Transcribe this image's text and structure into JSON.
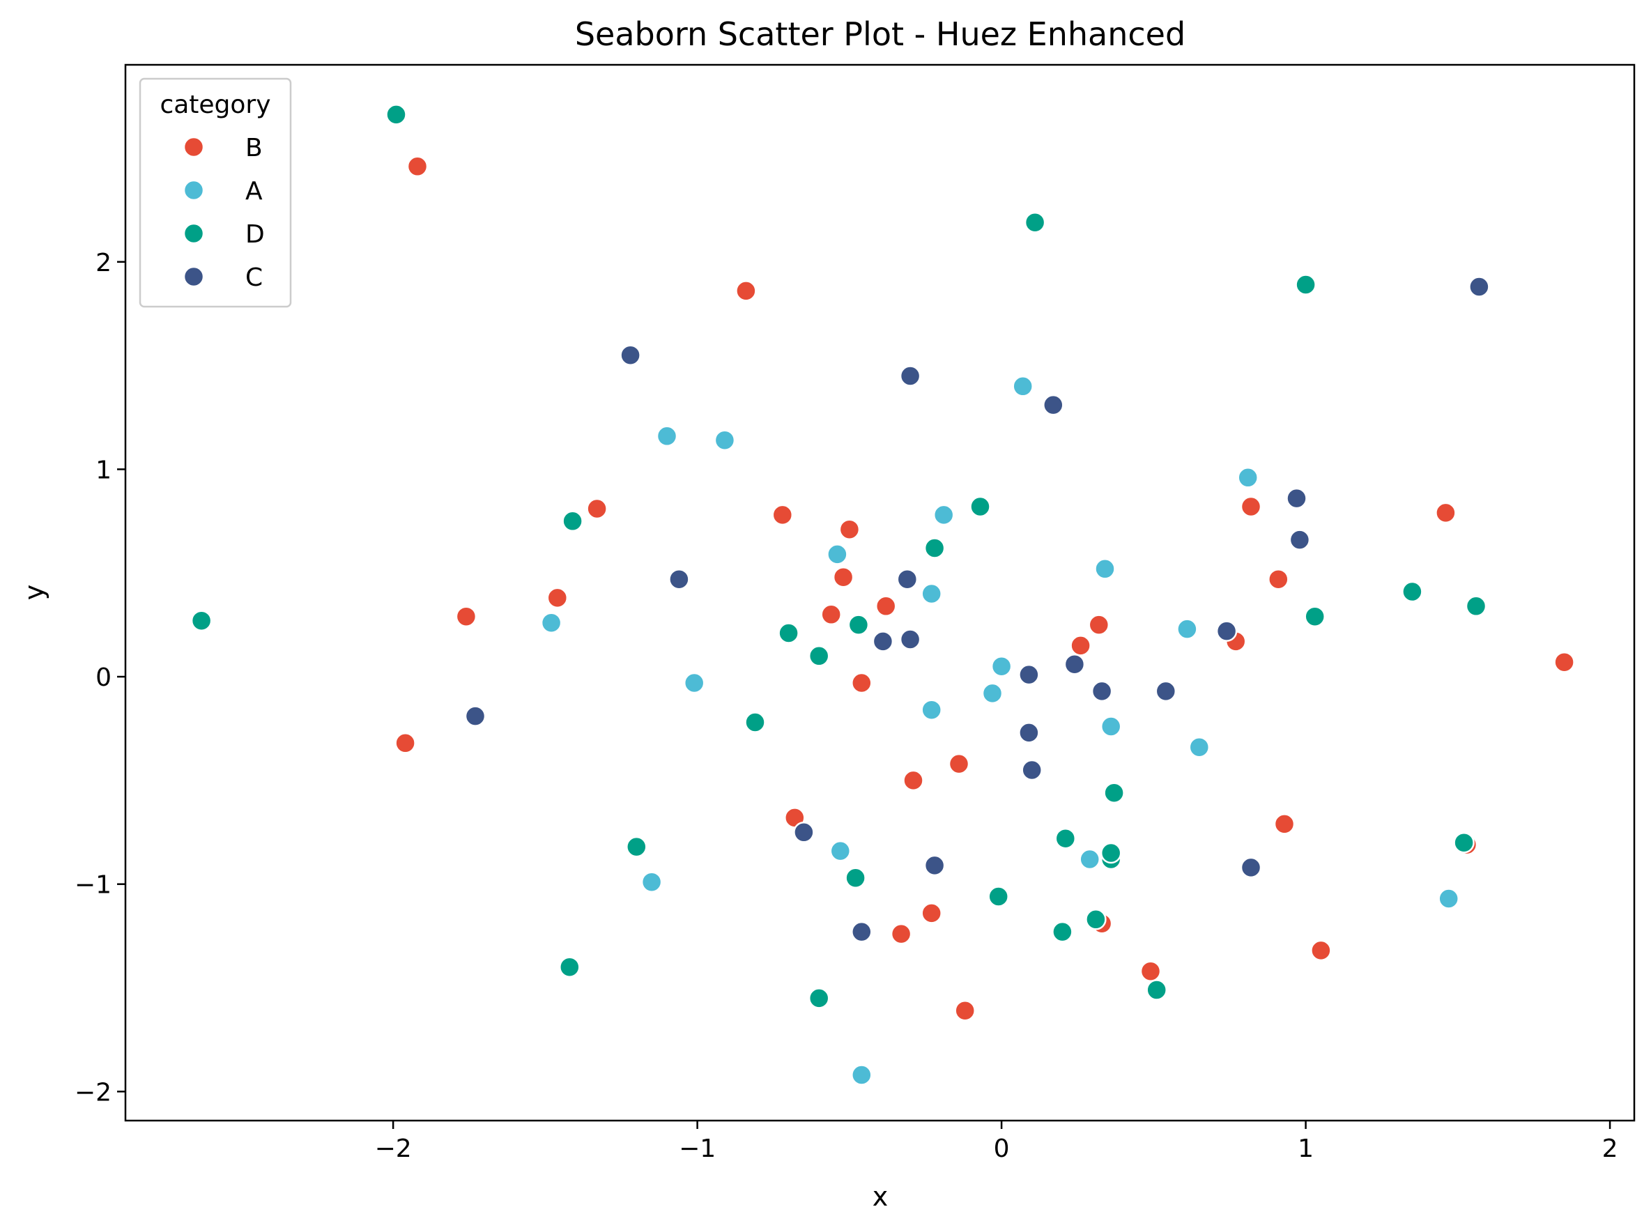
{
  "chart_data": {
    "type": "scatter",
    "title": "Seaborn Scatter Plot - Huez Enhanced",
    "xlabel": "x",
    "ylabel": "y",
    "xlim": [
      -2.88,
      2.08
    ],
    "ylim": [
      -2.14,
      2.95
    ],
    "xticks": [
      -2,
      -1,
      0,
      1,
      2
    ],
    "xtick_labels": [
      "−2",
      "−1",
      "0",
      "1",
      "2"
    ],
    "yticks": [
      -2,
      -1,
      0,
      1,
      2
    ],
    "ytick_labels": [
      "−2",
      "−1",
      "0",
      "1",
      "2"
    ],
    "grid": false,
    "legend": {
      "title": "category",
      "placement": "top-left"
    },
    "series": [
      {
        "name": "B",
        "color": "#E64B35",
        "points": [
          [
            -1.92,
            2.46
          ],
          [
            -0.84,
            1.86
          ],
          [
            -1.33,
            0.81
          ],
          [
            -0.72,
            0.78
          ],
          [
            -0.5,
            0.71
          ],
          [
            -0.52,
            0.48
          ],
          [
            -1.46,
            0.38
          ],
          [
            -1.76,
            0.29
          ],
          [
            -0.56,
            0.3
          ],
          [
            -0.38,
            0.34
          ],
          [
            -0.46,
            -0.03
          ],
          [
            -1.96,
            -0.32
          ],
          [
            -0.14,
            -0.42
          ],
          [
            -0.29,
            -0.5
          ],
          [
            -0.68,
            -0.68
          ],
          [
            -0.23,
            -1.14
          ],
          [
            -0.33,
            -1.24
          ],
          [
            -0.12,
            -1.61
          ],
          [
            0.32,
            0.25
          ],
          [
            0.26,
            0.15
          ],
          [
            0.82,
            0.82
          ],
          [
            0.91,
            0.47
          ],
          [
            0.77,
            0.17
          ],
          [
            0.93,
            -0.71
          ],
          [
            0.33,
            -1.19
          ],
          [
            0.49,
            -1.42
          ],
          [
            1.05,
            -1.32
          ],
          [
            1.46,
            0.79
          ],
          [
            1.53,
            -0.81
          ],
          [
            1.85,
            0.07
          ]
        ]
      },
      {
        "name": "A",
        "color": "#4DBBD5",
        "points": [
          [
            -1.1,
            1.16
          ],
          [
            -0.91,
            1.14
          ],
          [
            -1.48,
            0.26
          ],
          [
            -1.01,
            -0.03
          ],
          [
            -1.15,
            -0.99
          ],
          [
            -0.54,
            0.59
          ],
          [
            -0.19,
            0.78
          ],
          [
            -0.23,
            0.4
          ],
          [
            -0.23,
            -0.16
          ],
          [
            0.0,
            0.05
          ],
          [
            -0.03,
            -0.08
          ],
          [
            -0.53,
            -0.84
          ],
          [
            -0.46,
            -1.92
          ],
          [
            0.07,
            1.4
          ],
          [
            0.34,
            0.52
          ],
          [
            0.36,
            -0.24
          ],
          [
            0.29,
            -0.88
          ],
          [
            0.61,
            0.23
          ],
          [
            0.65,
            -0.34
          ],
          [
            0.81,
            0.96
          ],
          [
            1.47,
            -1.07
          ]
        ]
      },
      {
        "name": "D",
        "color": "#00A087",
        "points": [
          [
            -1.99,
            2.71
          ],
          [
            -2.63,
            0.27
          ],
          [
            -1.41,
            0.75
          ],
          [
            -1.2,
            -0.82
          ],
          [
            -1.42,
            -1.4
          ],
          [
            -0.7,
            0.21
          ],
          [
            -0.6,
            0.1
          ],
          [
            -0.47,
            0.25
          ],
          [
            -0.81,
            -0.22
          ],
          [
            -0.48,
            -0.97
          ],
          [
            -0.6,
            -1.55
          ],
          [
            -0.22,
            0.62
          ],
          [
            -0.07,
            0.82
          ],
          [
            0.11,
            2.19
          ],
          [
            -0.01,
            -1.06
          ],
          [
            0.21,
            -0.78
          ],
          [
            0.2,
            -1.23
          ],
          [
            0.37,
            -0.56
          ],
          [
            0.36,
            -0.88
          ],
          [
            0.36,
            -0.85
          ],
          [
            0.31,
            -1.17
          ],
          [
            0.51,
            -1.51
          ],
          [
            1.0,
            1.89
          ],
          [
            1.03,
            0.29
          ],
          [
            1.35,
            0.41
          ],
          [
            1.56,
            0.34
          ],
          [
            1.52,
            -0.8
          ]
        ]
      },
      {
        "name": "C",
        "color": "#3C5488",
        "points": [
          [
            -1.22,
            1.55
          ],
          [
            -1.06,
            0.47
          ],
          [
            -1.73,
            -0.19
          ],
          [
            -0.65,
            -0.75
          ],
          [
            -0.46,
            -1.23
          ],
          [
            -0.3,
            1.45
          ],
          [
            -0.31,
            0.47
          ],
          [
            -0.39,
            0.17
          ],
          [
            -0.3,
            0.18
          ],
          [
            -0.22,
            -0.91
          ],
          [
            0.17,
            1.31
          ],
          [
            0.09,
            0.01
          ],
          [
            0.09,
            -0.27
          ],
          [
            0.1,
            -0.45
          ],
          [
            0.24,
            0.06
          ],
          [
            0.33,
            -0.07
          ],
          [
            0.54,
            -0.07
          ],
          [
            0.74,
            0.22
          ],
          [
            0.97,
            0.86
          ],
          [
            0.98,
            0.66
          ],
          [
            0.82,
            -0.92
          ],
          [
            1.57,
            1.88
          ]
        ]
      }
    ]
  }
}
